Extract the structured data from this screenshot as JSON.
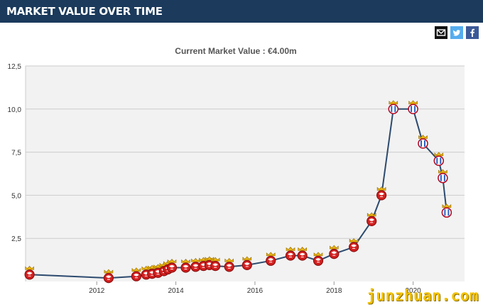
{
  "header": {
    "title": "MARKET VALUE OVER TIME"
  },
  "share": [
    {
      "icon": "email-icon",
      "color": "#111111"
    },
    {
      "icon": "twitter-icon",
      "color": "#55acee"
    },
    {
      "icon": "facebook-icon",
      "color": "#3b5998"
    }
  ],
  "watermark": {
    "text": "junzhuan.com"
  },
  "chart_data": {
    "type": "line",
    "title": "Current Market Value : €4.00m",
    "xlabel": "",
    "ylabel": "",
    "xlim": [
      2010.2,
      2021.3
    ],
    "ylim": [
      0,
      12.5
    ],
    "x_ticks": [
      2012,
      2014,
      2016,
      2018,
      2020
    ],
    "x_tick_labels": [
      "2012",
      "2014",
      "2016",
      "2018",
      "2020"
    ],
    "y_ticks": [
      2.5,
      5,
      7.5,
      10,
      12.5
    ],
    "y_tick_labels": [
      "2,5",
      "5,0",
      "7,5",
      "10,0",
      "12,5"
    ],
    "grid": true,
    "marker": "club-crest",
    "line_color": "#2c4a6e",
    "series": [
      {
        "x": [
          2010.3,
          2012.3,
          2013.0,
          2013.25,
          2013.4,
          2013.55,
          2013.7,
          2013.8,
          2013.9,
          2014.25,
          2014.5,
          2014.7,
          2014.85,
          2015.0,
          2015.35,
          2015.8,
          2016.4,
          2016.9,
          2017.2,
          2017.6,
          2018.0,
          2018.5,
          2018.95,
          2019.2,
          2019.5,
          2020.0,
          2020.25,
          2020.65,
          2020.75,
          2020.85
        ],
        "y": [
          0.4,
          0.2,
          0.3,
          0.4,
          0.45,
          0.5,
          0.6,
          0.7,
          0.8,
          0.8,
          0.85,
          0.9,
          0.95,
          0.9,
          0.85,
          0.95,
          1.2,
          1.5,
          1.5,
          1.2,
          1.6,
          2.0,
          3.5,
          5.0,
          10.0,
          10.0,
          8.0,
          7.0,
          6.0,
          4.0
        ],
        "colors": [
          "red",
          "red",
          "red",
          "red",
          "red",
          "red",
          "red",
          "red",
          "red",
          "red",
          "red",
          "red",
          "red",
          "red",
          "red",
          "red",
          "red",
          "red",
          "red",
          "red",
          "red",
          "red",
          "red",
          "red",
          "blue",
          "blue",
          "blue",
          "blue",
          "blue",
          "blue"
        ]
      }
    ]
  }
}
